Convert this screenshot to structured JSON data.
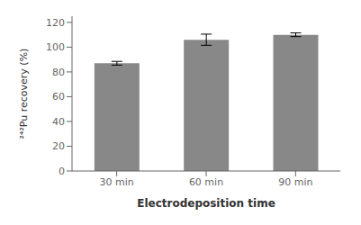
{
  "chart_data": {
    "type": "bar",
    "categories": [
      "30 min",
      "60 min",
      "90 min"
    ],
    "values": [
      87,
      106,
      110
    ],
    "errors": [
      1.5,
      4.5,
      1.5
    ],
    "color": "#888888",
    "xlabel": "Electrodeposition time",
    "ylabel": "²⁴²Pu recovery (%)",
    "ylim": [
      0,
      125
    ],
    "yticks": [
      0,
      20,
      40,
      60,
      80,
      100,
      120
    ],
    "grid": false
  }
}
